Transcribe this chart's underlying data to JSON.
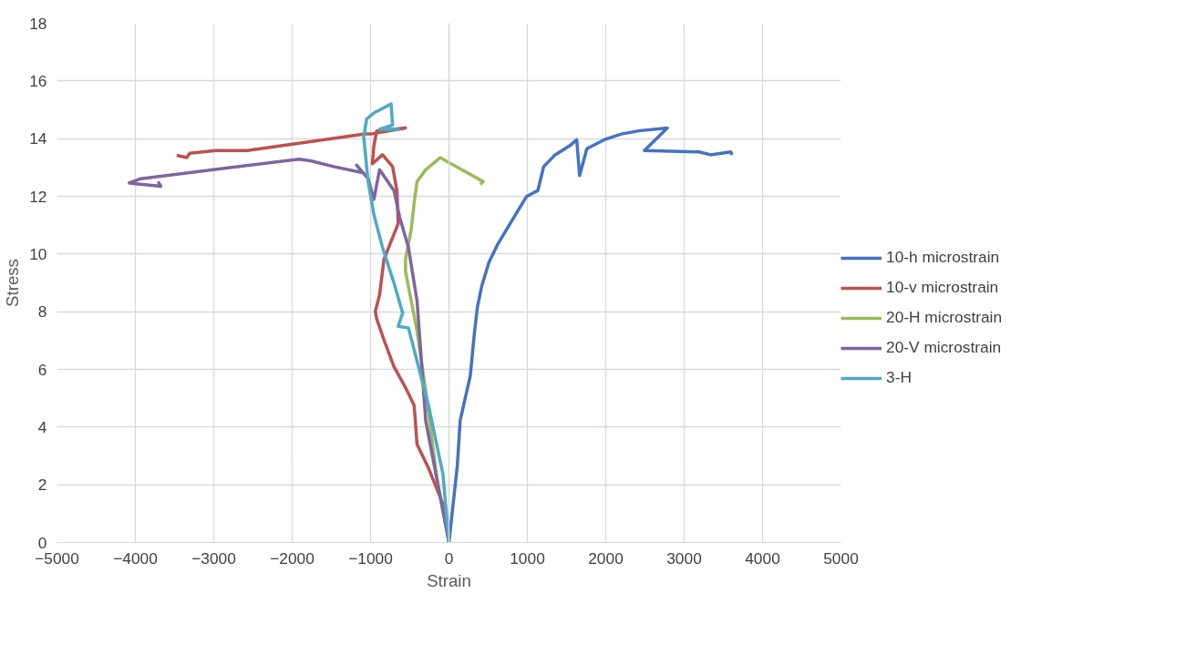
{
  "chart_data": {
    "type": "line",
    "xlabel": "Strain",
    "ylabel": "Stress",
    "xlim": [
      -5000,
      5000
    ],
    "ylim": [
      0,
      18
    ],
    "xticks": [
      -5000,
      -4000,
      -3000,
      -2000,
      -1000,
      0,
      1000,
      2000,
      3000,
      4000,
      5000
    ],
    "yticks": [
      0,
      2,
      4,
      6,
      8,
      10,
      12,
      14,
      16,
      18
    ],
    "grid": true,
    "legend": "right",
    "marker": "none",
    "line_style": "solid",
    "series": [
      {
        "name": "10-h microstrain",
        "color": "#4472c4",
        "x": [
          0,
          107,
          143,
          272,
          327,
          363,
          418,
          510,
          620,
          804,
          988,
          1134,
          1208,
          1355,
          1539,
          1630,
          1666,
          1759,
          1979,
          2199,
          2420,
          2786,
          2493,
          3190,
          3337,
          3594,
          3612
        ],
        "values": [
          0,
          2.68,
          4.23,
          5.78,
          7.33,
          8.16,
          8.89,
          9.71,
          10.33,
          11.16,
          11.99,
          12.2,
          13.03,
          13.44,
          13.75,
          13.96,
          12.72,
          13.65,
          13.96,
          14.16,
          14.27,
          14.37,
          13.59,
          13.54,
          13.44,
          13.54,
          13.44
        ]
      },
      {
        "name": "10-v microstrain",
        "color": "#c0504d",
        "x": [
          0,
          -77,
          -261,
          -407,
          -444,
          -554,
          -701,
          -829,
          -921,
          -940,
          -885,
          -829,
          -738,
          -647,
          -664,
          -719,
          -848,
          -977,
          -958,
          -921,
          -554,
          -994,
          -1068,
          -2574,
          -2977,
          -3307,
          -3344,
          -3473
        ],
        "values": [
          0,
          1.33,
          2.58,
          3.4,
          4.75,
          5.37,
          6.09,
          7.02,
          7.75,
          8.01,
          8.58,
          9.82,
          10.44,
          11.06,
          12.2,
          13.03,
          13.44,
          13.13,
          13.75,
          14.27,
          14.37,
          14.16,
          14.16,
          13.59,
          13.59,
          13.49,
          13.34,
          13.42
        ]
      },
      {
        "name": "20-H microstrain",
        "color": "#9bbb59",
        "x": [
          0,
          -151,
          -297,
          -407,
          -554,
          -554,
          -481,
          -444,
          -407,
          -297,
          -113,
          437,
          400
        ],
        "values": [
          0,
          2.16,
          5.27,
          7.33,
          9.4,
          9.82,
          10.85,
          11.78,
          12.51,
          12.92,
          13.34,
          12.51,
          12.41
        ]
      },
      {
        "name": "20-V microstrain",
        "color": "#8064a2",
        "x": [
          0,
          -297,
          -407,
          -517,
          -628,
          -701,
          -885,
          -958,
          -1031,
          -1178,
          -1105,
          -1472,
          -1766,
          -1913,
          -3932,
          -4078,
          -3675,
          -3711
        ],
        "values": [
          0,
          4.23,
          8.37,
          10.23,
          11.27,
          12.2,
          12.92,
          11.89,
          12.61,
          13.08,
          12.82,
          13.03,
          13.23,
          13.29,
          12.61,
          12.46,
          12.35,
          12.51
        ]
      },
      {
        "name": "3-H",
        "color": "#4bacc6",
        "x": [
          0,
          -77,
          -261,
          -517,
          -647,
          -591,
          -701,
          -848,
          -958,
          -1031,
          -1087,
          -1050,
          -958,
          -738,
          -719,
          -885,
          -628
        ],
        "values": [
          0,
          2.37,
          4.75,
          7.44,
          7.49,
          7.96,
          8.99,
          10.23,
          11.37,
          12.51,
          14.06,
          14.68,
          14.89,
          15.2,
          14.47,
          14.32,
          14.32
        ]
      }
    ]
  }
}
